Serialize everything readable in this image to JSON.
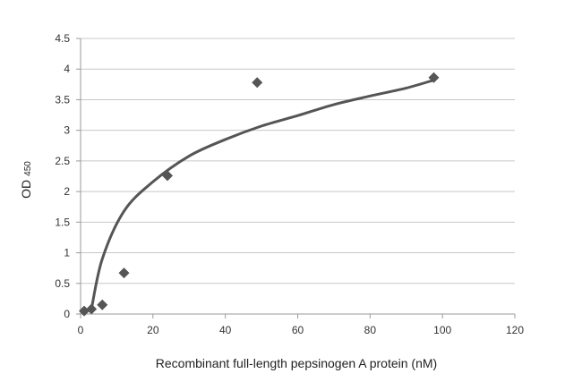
{
  "chart_data": {
    "type": "scatter",
    "title": "",
    "xlabel": "Recombinant full-length pepsinogen A protein (nM)",
    "ylabel": "OD",
    "ylabel_subscript": "450",
    "xlim": [
      0,
      120
    ],
    "ylim": [
      0,
      4.5
    ],
    "x_ticks": [
      "0",
      "20",
      "40",
      "60",
      "80",
      "100",
      "120"
    ],
    "y_ticks": [
      "0",
      "0.5",
      "1",
      "1.5",
      "2",
      "2.5",
      "3",
      "3.5",
      "4",
      "4.5"
    ],
    "grid": "horizontal",
    "legend": "none",
    "marker": "diamond",
    "marker_color": "#555555",
    "trendline_color": "#555555",
    "series": [
      {
        "points": [
          {
            "x": 1.0,
            "y": 0.05
          },
          {
            "x": 3.0,
            "y": 0.08
          },
          {
            "x": 6.0,
            "y": 0.15
          },
          {
            "x": 12.0,
            "y": 0.67
          },
          {
            "x": 24.0,
            "y": 2.26
          },
          {
            "x": 48.8,
            "y": 3.78
          },
          {
            "x": 97.6,
            "y": 3.86
          }
        ]
      }
    ],
    "trendline": {
      "type": "logarithmic",
      "points": [
        {
          "x": 3.0,
          "y": 0.08
        },
        {
          "x": 6.0,
          "y": 0.9
        },
        {
          "x": 12.0,
          "y": 1.68
        },
        {
          "x": 20.0,
          "y": 2.16
        },
        {
          "x": 30.0,
          "y": 2.58
        },
        {
          "x": 40.0,
          "y": 2.85
        },
        {
          "x": 50.0,
          "y": 3.07
        },
        {
          "x": 60.0,
          "y": 3.24
        },
        {
          "x": 70.0,
          "y": 3.42
        },
        {
          "x": 80.0,
          "y": 3.56
        },
        {
          "x": 90.0,
          "y": 3.69
        },
        {
          "x": 97.6,
          "y": 3.82
        }
      ]
    }
  }
}
